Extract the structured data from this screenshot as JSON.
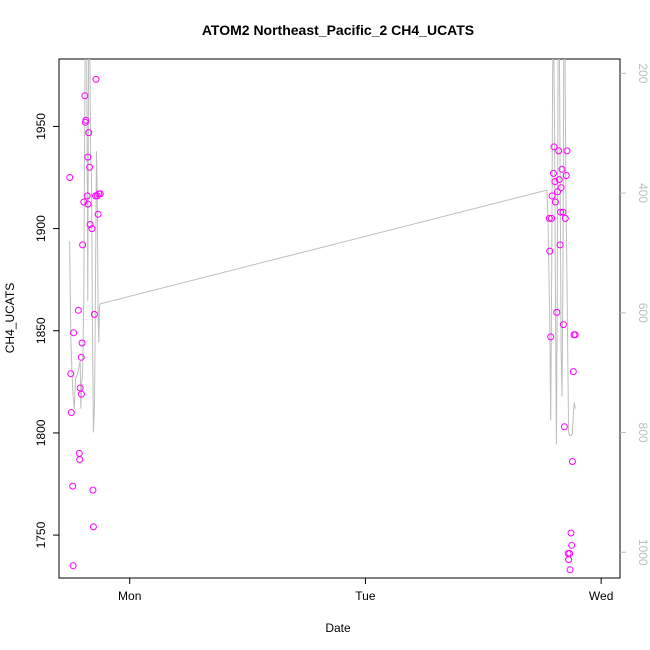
{
  "chart_data": {
    "type": "scatter",
    "title": "ATOM2 Northeast_Pacific_2 CH4_UCATS",
    "xlabel": "Date",
    "ylabel": "CH4_UCATS",
    "x_units": "days (Mon = 1, Tue = 2, Wed = 3)",
    "xlim": [
      0.7,
      3.08
    ],
    "ylim": [
      1729,
      1983
    ],
    "x_ticks": [
      {
        "value": 1,
        "label": "Mon"
      },
      {
        "value": 2,
        "label": "Tue"
      },
      {
        "value": 3,
        "label": "Wed"
      }
    ],
    "y_ticks": [
      1750,
      1800,
      1850,
      1900,
      1950
    ],
    "y2_ticks": [
      200,
      400,
      600,
      800,
      1000
    ],
    "y2lim": [
      1043,
      176
    ],
    "grid": false,
    "series": [
      {
        "kind": "points",
        "color": "#ff00ff",
        "points": [
          [
            0.746,
            1925
          ],
          [
            0.75,
            1829
          ],
          [
            0.752,
            1810
          ],
          [
            0.758,
            1774
          ],
          [
            0.76,
            1735
          ],
          [
            0.762,
            1849
          ],
          [
            0.782,
            1860
          ],
          [
            0.786,
            1790
          ],
          [
            0.788,
            1787
          ],
          [
            0.79,
            1822
          ],
          [
            0.794,
            1837
          ],
          [
            0.795,
            1819
          ],
          [
            0.798,
            1844
          ],
          [
            0.8,
            1892
          ],
          [
            0.805,
            1913
          ],
          [
            0.81,
            1965
          ],
          [
            0.812,
            1952
          ],
          [
            0.814,
            1953
          ],
          [
            0.82,
            1916
          ],
          [
            0.822,
            1935
          ],
          [
            0.823,
            1912
          ],
          [
            0.826,
            1947
          ],
          [
            0.83,
            1930
          ],
          [
            0.832,
            1902
          ],
          [
            0.84,
            1900
          ],
          [
            0.844,
            1772
          ],
          [
            0.846,
            1754
          ],
          [
            0.85,
            1858
          ],
          [
            0.855,
            1916
          ],
          [
            0.857,
            1973
          ],
          [
            0.862,
            1916
          ],
          [
            0.866,
            1907
          ],
          [
            0.869,
            1917
          ],
          [
            0.875,
            1917
          ],
          [
            2.78,
            1905
          ],
          [
            2.782,
            1889
          ],
          [
            2.786,
            1847
          ],
          [
            2.79,
            1905
          ],
          [
            2.792,
            1916
          ],
          [
            2.798,
            1927
          ],
          [
            2.8,
            1940
          ],
          [
            2.804,
            1923
          ],
          [
            2.806,
            1913
          ],
          [
            2.812,
            1859
          ],
          [
            2.815,
            1918
          ],
          [
            2.82,
            1938
          ],
          [
            2.822,
            1924
          ],
          [
            2.826,
            1892
          ],
          [
            2.828,
            1908
          ],
          [
            2.83,
            1920
          ],
          [
            2.834,
            1929
          ],
          [
            2.838,
            1908
          ],
          [
            2.84,
            1853
          ],
          [
            2.844,
            1803
          ],
          [
            2.848,
            1905
          ],
          [
            2.852,
            1926
          ],
          [
            2.855,
            1938
          ],
          [
            2.86,
            1741
          ],
          [
            2.862,
            1738
          ],
          [
            2.866,
            1741
          ],
          [
            2.868,
            1733
          ],
          [
            2.872,
            1751
          ],
          [
            2.875,
            1745
          ],
          [
            2.878,
            1786
          ],
          [
            2.882,
            1830
          ],
          [
            2.885,
            1848
          ],
          [
            2.89,
            1848
          ]
        ]
      },
      {
        "kind": "line",
        "name": "",
        "color": "#bdbdbd",
        "axis": "right",
        "points": [
          [
            0.745,
            480
          ],
          [
            0.75,
            640
          ],
          [
            0.755,
            700
          ],
          [
            0.76,
            740
          ],
          [
            0.765,
            760
          ],
          [
            0.77,
            710
          ],
          [
            0.775,
            705
          ],
          [
            0.78,
            700
          ],
          [
            0.785,
            690
          ],
          [
            0.79,
            680
          ],
          [
            0.793,
            760
          ],
          [
            0.796,
            720
          ],
          [
            0.8,
            700
          ],
          [
            0.805,
            580
          ],
          [
            0.808,
            350
          ],
          [
            0.812,
            100
          ],
          [
            0.815,
            100
          ],
          [
            0.818,
            200
          ],
          [
            0.822,
            580
          ],
          [
            0.826,
            100
          ],
          [
            0.83,
            100
          ],
          [
            0.834,
            330
          ],
          [
            0.838,
            380
          ],
          [
            0.843,
            680
          ],
          [
            0.846,
            800
          ],
          [
            0.85,
            760
          ],
          [
            0.853,
            640
          ],
          [
            0.856,
            480
          ],
          [
            0.859,
            330
          ],
          [
            0.862,
            400
          ],
          [
            0.866,
            600
          ],
          [
            0.869,
            650
          ],
          [
            0.872,
            590
          ],
          [
            0.875,
            585
          ],
          [
            2.77,
            395
          ],
          [
            2.774,
            440
          ],
          [
            2.778,
            520
          ],
          [
            2.782,
            620
          ],
          [
            2.786,
            780
          ],
          [
            2.79,
            560
          ],
          [
            2.794,
            210
          ],
          [
            2.798,
            100
          ],
          [
            2.802,
            280
          ],
          [
            2.806,
            560
          ],
          [
            2.81,
            820
          ],
          [
            2.814,
            560
          ],
          [
            2.818,
            100
          ],
          [
            2.822,
            100
          ],
          [
            2.826,
            360
          ],
          [
            2.83,
            660
          ],
          [
            2.834,
            740
          ],
          [
            2.838,
            520
          ],
          [
            2.842,
            100
          ],
          [
            2.846,
            100
          ],
          [
            2.85,
            390
          ],
          [
            2.854,
            500
          ],
          [
            2.858,
            660
          ],
          [
            2.862,
            800
          ],
          [
            2.866,
            805
          ],
          [
            2.87,
            805
          ],
          [
            2.874,
            805
          ],
          [
            2.878,
            802
          ],
          [
            2.882,
            770
          ],
          [
            2.886,
            750
          ],
          [
            2.89,
            760
          ]
        ]
      }
    ]
  }
}
